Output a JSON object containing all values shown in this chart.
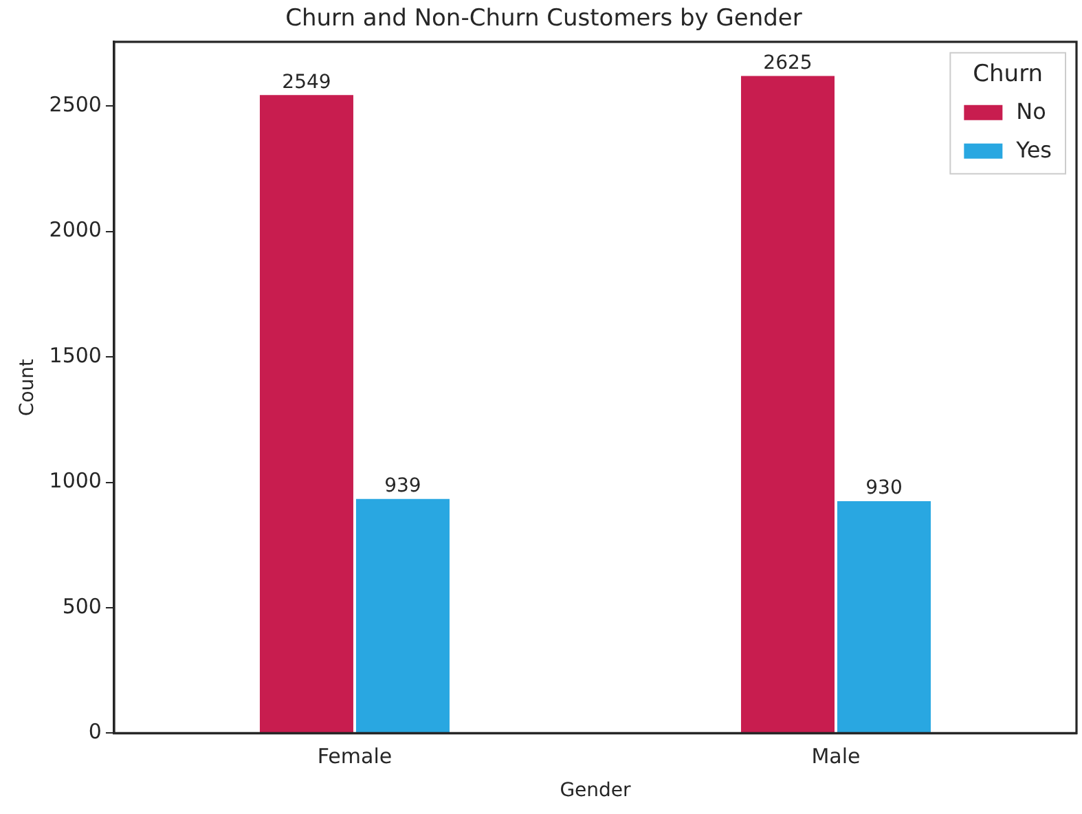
{
  "chart_data": {
    "type": "bar",
    "title": "Churn and Non-Churn Customers by Gender",
    "xlabel": "Gender",
    "ylabel": "Count",
    "legend_title": "Churn",
    "categories": [
      "Female",
      "Male"
    ],
    "series": [
      {
        "name": "No",
        "color": "#c81d4f",
        "values": [
          2549,
          2625
        ]
      },
      {
        "name": "Yes",
        "color": "#29a7e1",
        "values": [
          939,
          930
        ]
      }
    ],
    "ylim": [
      0,
      2756
    ],
    "yticks": [
      0,
      500,
      1000,
      1500,
      2000,
      2500
    ],
    "grid": false,
    "legend": "top right",
    "data_labels": true
  }
}
